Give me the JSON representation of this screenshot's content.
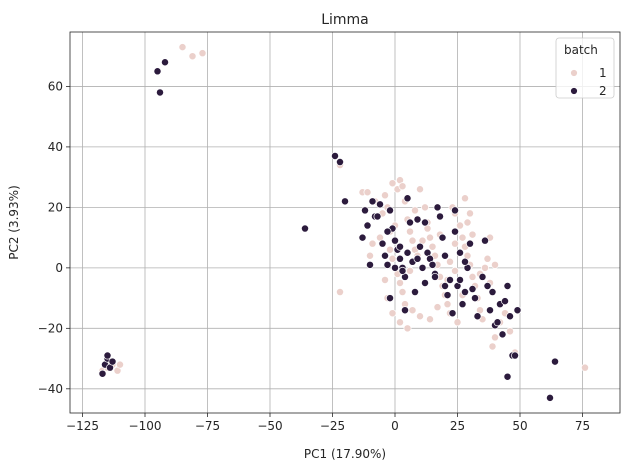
{
  "chart_data": {
    "type": "scatter",
    "title": "Limma",
    "xlabel": "PC1 (17.90%)",
    "ylabel": "PC2 (3.93%)",
    "xlim": [
      -130,
      90
    ],
    "ylim": [
      -48,
      78
    ],
    "xticks": [
      -125,
      -100,
      -75,
      -50,
      -25,
      0,
      25,
      50,
      75
    ],
    "yticks": [
      -40,
      -20,
      0,
      20,
      40,
      60
    ],
    "xtick_labels": [
      "−125",
      "−100",
      "−75",
      "−50",
      "−25",
      "0",
      "25",
      "50",
      "75"
    ],
    "ytick_labels": [
      "−40",
      "−20",
      "0",
      "20",
      "40",
      "60"
    ],
    "grid": true,
    "legend": {
      "title": "batch",
      "placement": "top-right"
    },
    "colors": {
      "batch1": "#ebd0cb",
      "batch2": "#2c1b3d"
    },
    "series": [
      {
        "name": "1",
        "points": [
          [
            -85,
            73
          ],
          [
            -81,
            70
          ],
          [
            -77,
            71
          ],
          [
            -117,
            -34
          ],
          [
            -115,
            -33
          ],
          [
            -113,
            -32
          ],
          [
            -111,
            -34
          ],
          [
            -110,
            -32
          ],
          [
            -114,
            -31
          ],
          [
            -22,
            34
          ],
          [
            -22,
            -8
          ],
          [
            -13,
            25
          ],
          [
            -11,
            25
          ],
          [
            -8,
            22
          ],
          [
            -5,
            18
          ],
          [
            -4,
            24
          ],
          [
            -3,
            20
          ],
          [
            -2,
            12
          ],
          [
            -6,
            10
          ],
          [
            -9,
            8
          ],
          [
            -10,
            4
          ],
          [
            -1,
            28
          ],
          [
            1,
            26
          ],
          [
            2,
            29
          ],
          [
            3,
            27
          ],
          [
            4,
            22
          ],
          [
            5,
            16
          ],
          [
            6,
            12
          ],
          [
            7,
            9
          ],
          [
            8,
            6
          ],
          [
            9,
            4
          ],
          [
            -2,
            6
          ],
          [
            -1,
            3
          ],
          [
            0,
            0
          ],
          [
            1,
            -2
          ],
          [
            2,
            -5
          ],
          [
            3,
            -8
          ],
          [
            4,
            -12
          ],
          [
            10,
            26
          ],
          [
            12,
            20
          ],
          [
            13,
            15
          ],
          [
            14,
            10
          ],
          [
            15,
            7
          ],
          [
            16,
            4
          ],
          [
            17,
            1
          ],
          [
            18,
            -3
          ],
          [
            19,
            -6
          ],
          [
            20,
            -9
          ],
          [
            21,
            -12
          ],
          [
            22,
            -15
          ],
          [
            23,
            20
          ],
          [
            24,
            18
          ],
          [
            26,
            14
          ],
          [
            27,
            10
          ],
          [
            28,
            7
          ],
          [
            29,
            4
          ],
          [
            30,
            1
          ],
          [
            31,
            -3
          ],
          [
            32,
            -6
          ],
          [
            33,
            -10
          ],
          [
            34,
            -14
          ],
          [
            35,
            -17
          ],
          [
            28,
            23
          ],
          [
            30,
            18
          ],
          [
            36,
            0
          ],
          [
            38,
            10
          ],
          [
            38,
            -5
          ],
          [
            39,
            -26
          ],
          [
            40,
            -23
          ],
          [
            42,
            -18
          ],
          [
            44,
            -15
          ],
          [
            46,
            -21
          ],
          [
            48,
            -28
          ],
          [
            76,
            -33
          ],
          [
            -3,
            -10
          ],
          [
            -1,
            -15
          ],
          [
            2,
            -18
          ],
          [
            5,
            -20
          ],
          [
            7,
            -14
          ],
          [
            10,
            -16
          ],
          [
            14,
            -17
          ],
          [
            17,
            -13
          ],
          [
            21,
            -4
          ],
          [
            24,
            -1
          ],
          [
            25,
            -18
          ],
          [
            27,
            -9
          ],
          [
            29,
            15
          ],
          [
            6,
            -1
          ],
          [
            11,
            9
          ],
          [
            13,
            13
          ],
          [
            18,
            11
          ],
          [
            22,
            2
          ],
          [
            24,
            8
          ],
          [
            31,
            11
          ],
          [
            34,
            -2
          ],
          [
            37,
            3
          ],
          [
            40,
            1
          ],
          [
            -4,
            -4
          ],
          [
            0,
            14
          ],
          [
            8,
            19
          ]
        ]
      },
      {
        "name": "2",
        "points": [
          [
            -95,
            65
          ],
          [
            -92,
            68
          ],
          [
            -94,
            58
          ],
          [
            -117,
            -35
          ],
          [
            -116,
            -32
          ],
          [
            -115,
            -30
          ],
          [
            -114,
            -33
          ],
          [
            -115,
            -29
          ],
          [
            -113,
            -31
          ],
          [
            -36,
            13
          ],
          [
            -24,
            37
          ],
          [
            -22,
            35
          ],
          [
            -20,
            22
          ],
          [
            -13,
            10
          ],
          [
            -11,
            14
          ],
          [
            -8,
            17
          ],
          [
            -6,
            21
          ],
          [
            -5,
            8
          ],
          [
            -4,
            4
          ],
          [
            -3,
            1
          ],
          [
            -2,
            19
          ],
          [
            -1,
            13
          ],
          [
            0,
            9
          ],
          [
            1,
            6
          ],
          [
            2,
            3
          ],
          [
            3,
            0
          ],
          [
            4,
            -3
          ],
          [
            5,
            23
          ],
          [
            6,
            15
          ],
          [
            7,
            2
          ],
          [
            -12,
            19
          ],
          [
            -9,
            22
          ],
          [
            -7,
            17
          ],
          [
            -3,
            12
          ],
          [
            0,
            0
          ],
          [
            2,
            7
          ],
          [
            5,
            5
          ],
          [
            9,
            16
          ],
          [
            10,
            7
          ],
          [
            11,
            0
          ],
          [
            12,
            15
          ],
          [
            13,
            5
          ],
          [
            14,
            3
          ],
          [
            15,
            1
          ],
          [
            16,
            -2
          ],
          [
            17,
            20
          ],
          [
            18,
            17
          ],
          [
            19,
            10
          ],
          [
            20,
            -6
          ],
          [
            21,
            -9
          ],
          [
            22,
            -4
          ],
          [
            23,
            -15
          ],
          [
            24,
            19
          ],
          [
            25,
            -6
          ],
          [
            26,
            -4
          ],
          [
            27,
            -12
          ],
          [
            28,
            -8
          ],
          [
            29,
            0
          ],
          [
            30,
            8
          ],
          [
            31,
            -7
          ],
          [
            32,
            -10
          ],
          [
            33,
            -16
          ],
          [
            35,
            -3
          ],
          [
            36,
            9
          ],
          [
            37,
            -6
          ],
          [
            38,
            -14
          ],
          [
            39,
            -8
          ],
          [
            40,
            -19
          ],
          [
            41,
            -18
          ],
          [
            42,
            -12
          ],
          [
            43,
            -22
          ],
          [
            44,
            -11
          ],
          [
            45,
            -6
          ],
          [
            46,
            -16
          ],
          [
            47,
            -29
          ],
          [
            48,
            -29
          ],
          [
            49,
            -14
          ],
          [
            45,
            -36
          ],
          [
            62,
            -43
          ],
          [
            64,
            -31
          ],
          [
            -10,
            1
          ],
          [
            -2,
            -10
          ],
          [
            4,
            -14
          ],
          [
            8,
            -8
          ],
          [
            12,
            -5
          ],
          [
            16,
            -3
          ],
          [
            20,
            4
          ],
          [
            24,
            12
          ],
          [
            28,
            2
          ],
          [
            26,
            5
          ],
          [
            3,
            -1
          ],
          [
            9,
            3
          ]
        ]
      }
    ]
  }
}
